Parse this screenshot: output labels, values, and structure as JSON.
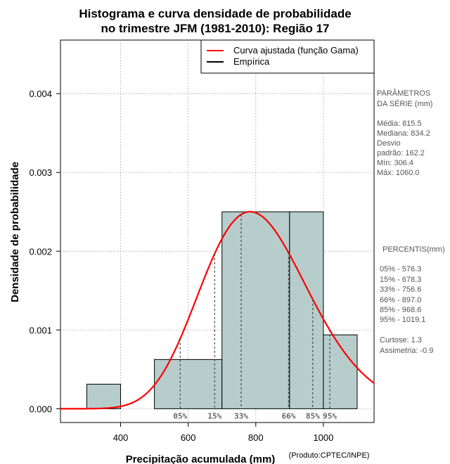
{
  "chart_data": {
    "type": "bar",
    "title_line1": "Histograma e curva densidade de probabilidade",
    "title_line2": "no trimestre JFM (1981-2010): Região 17",
    "xlabel": "Precipitação acumulada (mm)",
    "ylabel": "Densidade de probabilidade",
    "credit": "(Produto:CPTEC/INPE)",
    "xlim": [
      222,
      1150
    ],
    "ylim": [
      -0.000175,
      0.00468
    ],
    "x_ticks": [
      400,
      600,
      800,
      1000
    ],
    "y_ticks": [
      0.0,
      0.001,
      0.002,
      0.003,
      0.004
    ],
    "y_tick_labels": [
      "0.000",
      "0.001",
      "0.002",
      "0.003",
      "0.004"
    ],
    "bins": [
      {
        "from": 300,
        "to": 400,
        "density": 0.000312
      },
      {
        "from": 500,
        "to": 700,
        "density": 0.000625
      },
      {
        "from": 700,
        "to": 900,
        "density": 0.0025
      },
      {
        "from": 900,
        "to": 1000,
        "density": 0.0025
      },
      {
        "from": 1000,
        "to": 1100,
        "density": 0.000938
      }
    ],
    "gamma_curve": {
      "mean": 815.5,
      "sd": 162.2,
      "color": "#ff0000"
    },
    "bar_color": "#b6cdcc",
    "legend": {
      "position": "top-right",
      "entries": [
        {
          "label": "Curva ajustada (função Gama)",
          "color": "#ff0000"
        },
        {
          "label": "Empírica",
          "color": "#000000"
        }
      ]
    },
    "percentile_lines": [
      {
        "label": "05%",
        "value": 576.3
      },
      {
        "label": "15%",
        "value": 678.3
      },
      {
        "label": "33%",
        "value": 756.6
      },
      {
        "label": "66%",
        "value": 897.0
      },
      {
        "label": "85%",
        "value": 968.6
      },
      {
        "label": "95%",
        "value": 1019.1
      }
    ]
  },
  "side_panel": {
    "params_title_1": "PARÂMETROS",
    "params_title_2": " DA SÉRIE (mm)",
    "params": [
      "Média:  815.5",
      "Mediana:  834.2",
      "Desvio",
      "padrão:  162.2",
      "Mín:  306.4",
      "Máx:  1060.0"
    ],
    "percentis_title": "PERCENTIS(mm)",
    "percentis": [
      "05% -   576.3",
      "15% -   678.3",
      "33% -   756.6",
      "66% -   897.0",
      "85% -   968.6",
      "95% -   1019.1"
    ],
    "stats": [
      "Curtose:  1.3",
      "Assimetria:  -0.9"
    ]
  }
}
